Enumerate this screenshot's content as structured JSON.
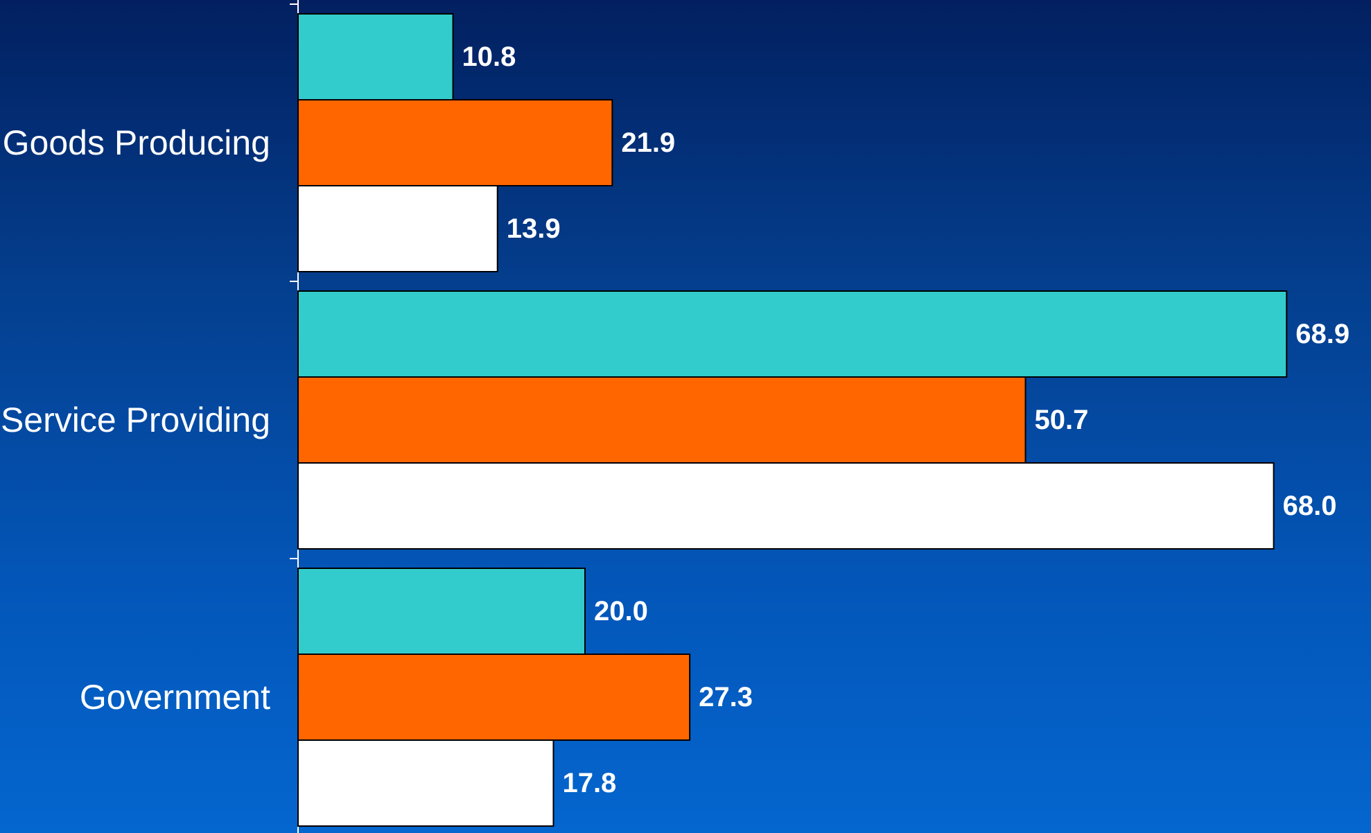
{
  "chart_data": {
    "type": "bar",
    "orientation": "horizontal",
    "categories": [
      "Goods Producing",
      "Service Providing",
      "Government"
    ],
    "series": [
      {
        "values": [
          10.8,
          68.9,
          20.0
        ],
        "labels": [
          "10.8",
          "68.9",
          "20.0"
        ],
        "color": "#33cccc"
      },
      {
        "values": [
          21.9,
          50.7,
          27.3
        ],
        "labels": [
          "21.9",
          "50.7",
          "27.3"
        ],
        "color": "#ff6600"
      },
      {
        "values": [
          13.9,
          68.0,
          17.8
        ],
        "labels": [
          "13.9",
          "68.0",
          "17.8"
        ],
        "color": "#ffffff"
      }
    ],
    "title": "",
    "xlabel": "",
    "ylabel": "",
    "xlim": [
      0,
      70
    ],
    "grid": false,
    "legend": "none",
    "data_labels": true
  },
  "colors": {
    "bar_outline": "#000000",
    "axis": "#ffffff",
    "text": "#ffffff"
  }
}
